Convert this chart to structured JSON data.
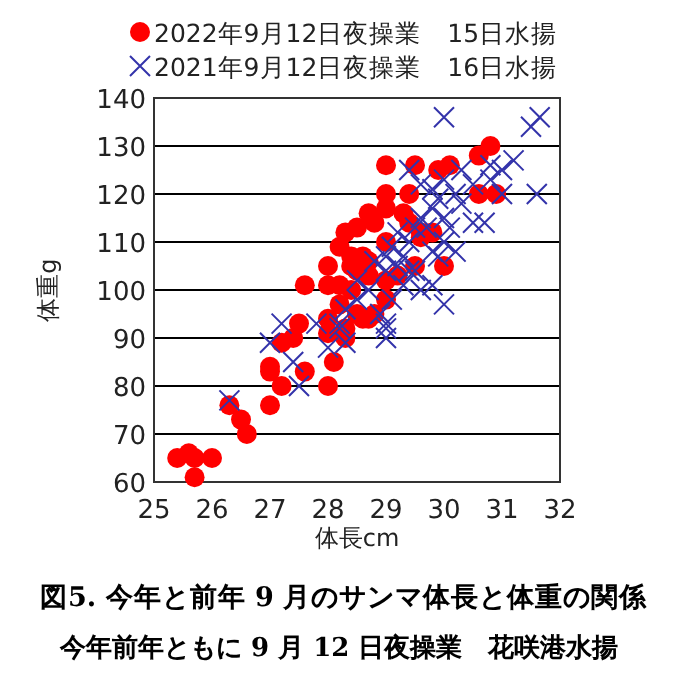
{
  "chart_data": {
    "type": "scatter",
    "title": "図5. 今年と前年 9 月のサンマ体長と体重の関係",
    "subtitle": "今年前年ともに 9 月 12 日夜操業　花咲港水揚",
    "xlabel": "体長cm",
    "ylabel": "体重g",
    "xlim": [
      25,
      32
    ],
    "xticks": [
      25,
      26,
      27,
      28,
      29,
      30,
      31,
      32
    ],
    "ylim": [
      60,
      140
    ],
    "yticks": [
      60,
      70,
      80,
      90,
      100,
      110,
      120,
      130,
      140
    ],
    "grid": "y",
    "legend": "top",
    "series": [
      {
        "name": "2022年9月12日夜操業　15日水揚",
        "color": "#ff0000",
        "marker": "circle",
        "x": [
          25.4,
          25.6,
          25.7,
          25.7,
          26.0,
          26.3,
          26.5,
          26.6,
          27.0,
          27.0,
          27.0,
          27.2,
          27.2,
          27.4,
          27.5,
          27.6,
          27.6,
          28.0,
          28.1,
          28.0,
          28.0,
          28.0,
          28.0,
          28.2,
          28.2,
          28.3,
          28.3,
          28.4,
          28.5,
          28.6,
          28.7,
          28.8,
          29.0,
          29.0,
          28.6,
          28.7,
          28.4,
          29.2,
          30.0,
          29.0,
          29.4,
          29.0,
          29.5,
          28.3,
          28.5,
          28.7,
          28.8,
          29.0,
          29.3,
          29.4,
          29.6,
          28.2,
          28.4,
          28.5,
          28.7,
          29.0,
          29.5,
          29.6,
          29.8,
          30.1,
          30.8,
          30.6,
          30.6,
          30.9,
          29.9
        ],
        "values": [
          65,
          66,
          65,
          61,
          65,
          76,
          73,
          70,
          76,
          83,
          84,
          80,
          89,
          90,
          93,
          83,
          101,
          80,
          85,
          91,
          94,
          101,
          105,
          101,
          97,
          92,
          90,
          100,
          95,
          94,
          94,
          95,
          98,
          102,
          107,
          103,
          105,
          103,
          105,
          120,
          120,
          126,
          126,
          112,
          113,
          116,
          114,
          117,
          116,
          114,
          112,
          109,
          107,
          104,
          106,
          110,
          105,
          111,
          112,
          126,
          130,
          128,
          120,
          120,
          125
        ]
      },
      {
        "name": "2021年9月12日夜操業　16日水揚",
        "color": "#3333aa",
        "marker": "cross",
        "x": [
          26.3,
          27.0,
          27.2,
          27.4,
          27.5,
          27.8,
          28.0,
          28.2,
          28.3,
          29.0,
          29.0,
          29.0,
          30.0,
          29.6,
          29.8,
          29.5,
          29.2,
          29.0,
          29.4,
          29.7,
          30.0,
          30.3,
          30.5,
          30.7,
          31.0,
          31.6,
          31.2,
          31.0,
          30.8,
          30.3,
          30.0,
          29.8,
          29.6,
          29.4,
          30.0,
          31.5,
          31.65,
          29.9,
          30.2,
          30.0,
          29.4,
          28.7,
          28.5,
          28.3,
          28.2,
          29.0,
          29.3,
          29.5,
          29.8,
          30.2,
          30.5,
          30.8,
          29.9,
          29.2,
          29.1,
          28.8,
          28.5,
          30.1,
          29.8,
          29.6,
          29.3,
          29.1,
          28.9
        ],
        "values": [
          77,
          89,
          93,
          85,
          80,
          93,
          88,
          92,
          89,
          90,
          93,
          92,
          97,
          100,
          101,
          104,
          105,
          107,
          110,
          113,
          115,
          118,
          114,
          114,
          120,
          120,
          127,
          125,
          126,
          125,
          123,
          121,
          122,
          125,
          136,
          134,
          136,
          107,
          108,
          110,
          104,
          100,
          98,
          96,
          93,
          104,
          107,
          113,
          117,
          120,
          122,
          123,
          119,
          112,
          109,
          106,
          102,
          113,
          108,
          115,
          101,
          98,
          95
        ]
      }
    ]
  }
}
